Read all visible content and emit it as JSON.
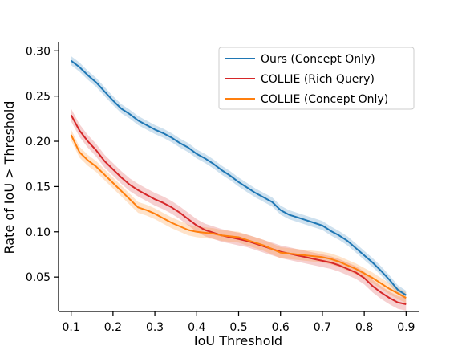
{
  "chart_data": {
    "type": "line",
    "xlabel": "IoU Threshold",
    "ylabel": "Rate of IoU > Threshold",
    "xlim": [
      0.07,
      0.93
    ],
    "ylim": [
      0.012,
      0.31
    ],
    "xticks": [
      0.1,
      0.2,
      0.3,
      0.4,
      0.5,
      0.6,
      0.7,
      0.8,
      0.9
    ],
    "xtick_labels": [
      "0.1",
      "0.2",
      "0.3",
      "0.4",
      "0.5",
      "0.6",
      "0.7",
      "0.8",
      "0.9"
    ],
    "yticks": [
      0.05,
      0.1,
      0.15,
      0.2,
      0.25,
      0.3
    ],
    "ytick_labels": [
      "0.05",
      "0.10",
      "0.15",
      "0.20",
      "0.25",
      "0.30"
    ],
    "grid": false,
    "legend_position": "top-right",
    "x": [
      0.1,
      0.12,
      0.14,
      0.16,
      0.18,
      0.2,
      0.22,
      0.24,
      0.26,
      0.28,
      0.3,
      0.32,
      0.34,
      0.36,
      0.38,
      0.4,
      0.42,
      0.44,
      0.46,
      0.48,
      0.5,
      0.52,
      0.54,
      0.56,
      0.58,
      0.6,
      0.62,
      0.64,
      0.66,
      0.68,
      0.7,
      0.72,
      0.74,
      0.76,
      0.78,
      0.8,
      0.82,
      0.84,
      0.86,
      0.88,
      0.9
    ],
    "series": [
      {
        "name": "Ours (Concept Only)",
        "color": "#1f77b4",
        "values": [
          0.289,
          0.282,
          0.273,
          0.265,
          0.255,
          0.245,
          0.236,
          0.23,
          0.223,
          0.218,
          0.213,
          0.209,
          0.204,
          0.198,
          0.193,
          0.186,
          0.181,
          0.175,
          0.168,
          0.162,
          0.155,
          0.149,
          0.143,
          0.138,
          0.133,
          0.124,
          0.119,
          0.116,
          0.113,
          0.11,
          0.107,
          0.101,
          0.096,
          0.09,
          0.082,
          0.074,
          0.066,
          0.057,
          0.047,
          0.036,
          0.03
        ],
        "band": 0.005
      },
      {
        "name": "COLLIE (Rich Query)",
        "color": "#d62728",
        "values": [
          0.229,
          0.212,
          0.2,
          0.19,
          0.178,
          0.169,
          0.16,
          0.152,
          0.146,
          0.141,
          0.136,
          0.132,
          0.127,
          0.121,
          0.114,
          0.107,
          0.102,
          0.099,
          0.096,
          0.094,
          0.092,
          0.09,
          0.087,
          0.084,
          0.081,
          0.078,
          0.076,
          0.074,
          0.072,
          0.07,
          0.068,
          0.066,
          0.063,
          0.059,
          0.055,
          0.049,
          0.04,
          0.033,
          0.027,
          0.022,
          0.02
        ],
        "band": 0.007
      },
      {
        "name": "COLLIE (Concept Only)",
        "color": "#ff7f0e",
        "values": [
          0.207,
          0.188,
          0.179,
          0.172,
          0.163,
          0.154,
          0.145,
          0.136,
          0.127,
          0.124,
          0.12,
          0.115,
          0.11,
          0.106,
          0.102,
          0.1,
          0.099,
          0.098,
          0.096,
          0.095,
          0.094,
          0.091,
          0.088,
          0.085,
          0.081,
          0.077,
          0.076,
          0.075,
          0.074,
          0.073,
          0.072,
          0.07,
          0.067,
          0.063,
          0.059,
          0.054,
          0.049,
          0.043,
          0.037,
          0.032,
          0.027
        ],
        "band": 0.006
      }
    ]
  }
}
